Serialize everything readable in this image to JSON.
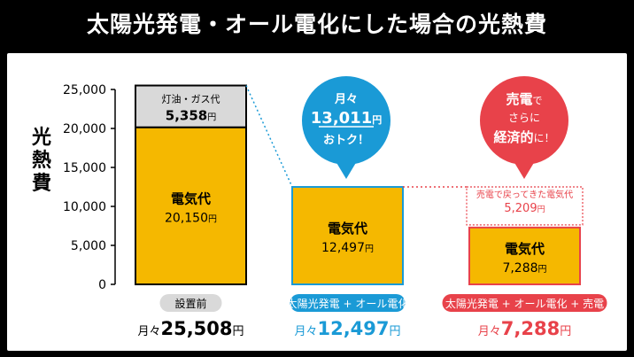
{
  "page": {
    "title": "太陽光発電・オール電化にした場合の光熱費"
  },
  "chart_data": {
    "type": "bar",
    "ylabel": "光熱費",
    "ylim": [
      0,
      25000
    ],
    "yticks": [
      "0",
      "5,000",
      "10,000",
      "15,000",
      "20,000",
      "25,000"
    ],
    "ytick_values": [
      0,
      5000,
      10000,
      15000,
      20000,
      25000
    ],
    "grid": false,
    "categories": [
      "設置前",
      "太陽光発電 + オール電化",
      "太陽光発電 + オール電化 + 売電"
    ],
    "series": [
      {
        "name": "電気代",
        "values": [
          20150,
          12497,
          7288
        ],
        "labels": [
          "20,150",
          "12,497",
          "7,288"
        ],
        "color": "#f5b800"
      },
      {
        "name": "灯油・ガス代",
        "values": [
          5358,
          0,
          0
        ],
        "labels": [
          "5,358",
          "",
          ""
        ],
        "color": "#d9d9d9"
      }
    ],
    "sell_back": {
      "label": "売電で戻ってきた電気代",
      "value": 5209,
      "value_label": "5,209",
      "color": "#e8424a"
    },
    "yen": "円",
    "totals": [
      {
        "prefix": "月々",
        "value": "25,508",
        "unit": "円",
        "color": "#000000"
      },
      {
        "prefix": "月々",
        "value": "12,497",
        "unit": "円",
        "color": "#1a9ad6"
      },
      {
        "prefix": "月々",
        "value": "7,288",
        "unit": "円",
        "color": "#e8424a"
      }
    ],
    "category_badge_colors": [
      "#d9d9d9",
      "#1a9ad6",
      "#e8424a"
    ],
    "bubbles": [
      {
        "lines": [
          "月々",
          "13,011",
          "円",
          "おトク！"
        ],
        "color": "#1a9ad6"
      },
      {
        "lines": [
          "売電",
          "で",
          "さらに",
          "経済的",
          "に！"
        ],
        "color": "#e8424a"
      }
    ]
  }
}
